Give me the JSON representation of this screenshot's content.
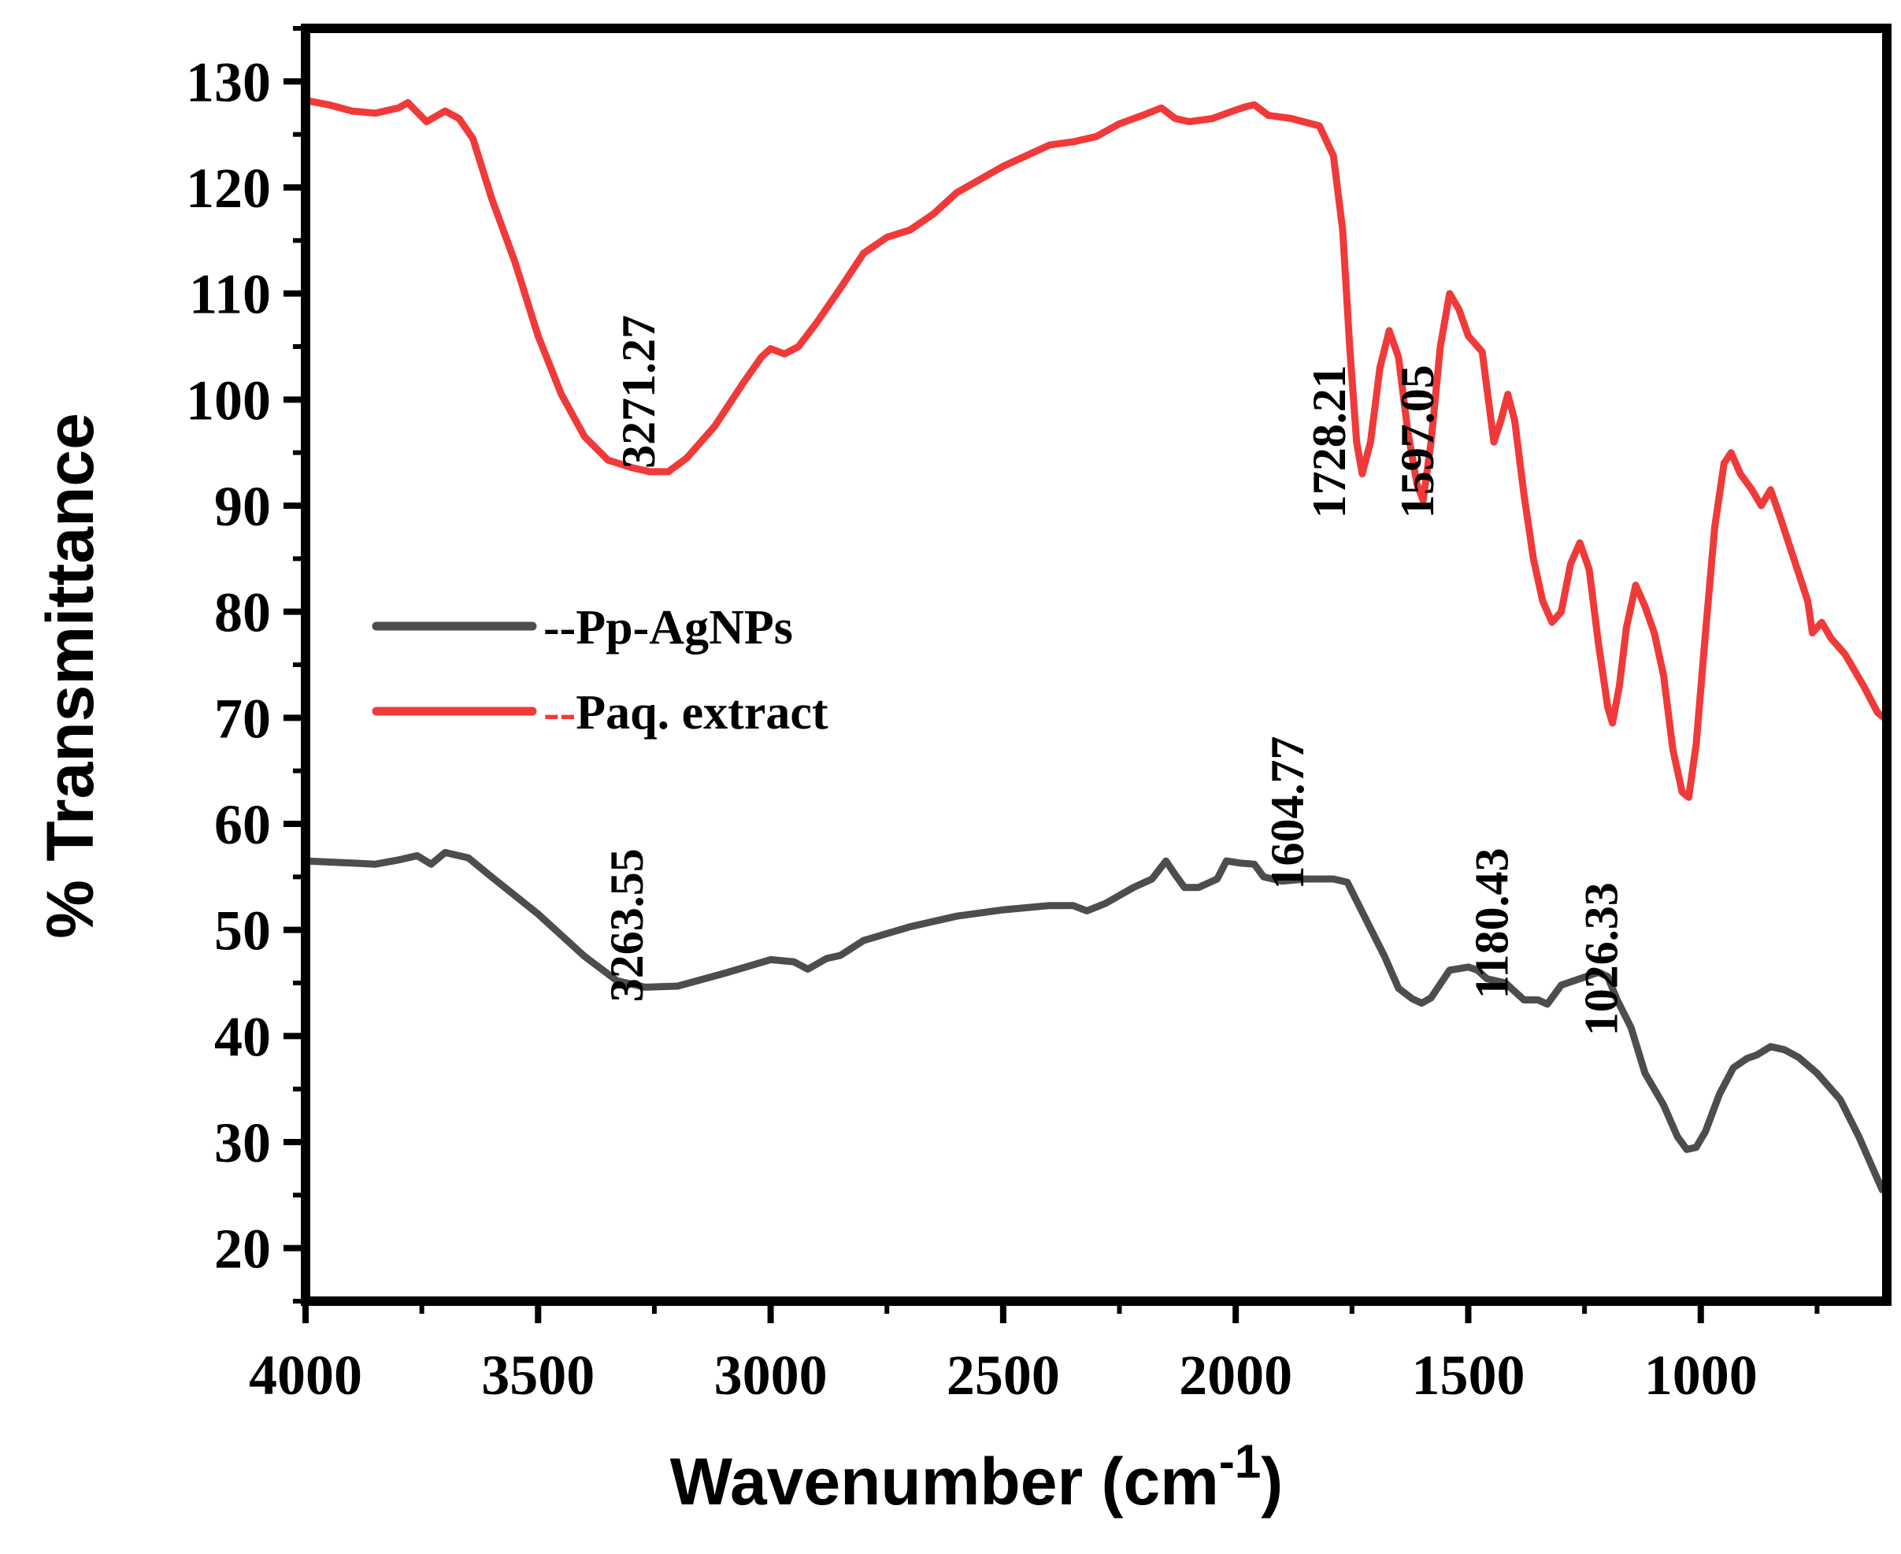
{
  "chart_data": {
    "type": "line",
    "xlabel": "Wavenumber (cm",
    "xlabel_sup": "-1",
    "xlabel_close": ")",
    "ylabel": "% Transmittance",
    "xlim": [
      4000,
      600
    ],
    "ylim": [
      15,
      135
    ],
    "xticks": [
      4000,
      3500,
      3000,
      2500,
      2000,
      1500,
      1000
    ],
    "xtick_labels": [
      "4000",
      "3500",
      "3000",
      "2500",
      "2000",
      "1500",
      "1000"
    ],
    "yticks": [
      20,
      30,
      40,
      50,
      60,
      70,
      80,
      90,
      100,
      110,
      120,
      130
    ],
    "ytick_labels": [
      "20",
      "30",
      "40",
      "50",
      "60",
      "70",
      "80",
      "90",
      "100",
      "110",
      "120",
      "130"
    ],
    "legend": {
      "position": "center-left",
      "items": [
        {
          "prefix": "--",
          "label": "Pp-AgNPs",
          "series": 0
        },
        {
          "prefix": "--",
          "label": "Paq. extract",
          "series": 1
        }
      ]
    },
    "series": [
      {
        "name": "Pp-AgNPs",
        "color": "#4d4d4d",
        "points": [
          [
            4000,
            56.5
          ],
          [
            3900,
            56.3
          ],
          [
            3850,
            56.2
          ],
          [
            3800,
            56.6
          ],
          [
            3760,
            57
          ],
          [
            3730,
            56.2
          ],
          [
            3700,
            57.3
          ],
          [
            3650,
            56.8
          ],
          [
            3600,
            55
          ],
          [
            3500,
            51.5
          ],
          [
            3400,
            47.5
          ],
          [
            3330,
            45.2
          ],
          [
            3270,
            44.6
          ],
          [
            3200,
            44.7
          ],
          [
            3100,
            45.9
          ],
          [
            3000,
            47.2
          ],
          [
            2950,
            47
          ],
          [
            2920,
            46.3
          ],
          [
            2880,
            47.3
          ],
          [
            2850,
            47.6
          ],
          [
            2800,
            49
          ],
          [
            2700,
            50.3
          ],
          [
            2600,
            51.3
          ],
          [
            2500,
            51.9
          ],
          [
            2400,
            52.3
          ],
          [
            2350,
            52.3
          ],
          [
            2320,
            51.8
          ],
          [
            2280,
            52.5
          ],
          [
            2220,
            54
          ],
          [
            2180,
            54.8
          ],
          [
            2150,
            56.5
          ],
          [
            2130,
            55.2
          ],
          [
            2110,
            54
          ],
          [
            2080,
            54
          ],
          [
            2040,
            54.8
          ],
          [
            2020,
            56.5
          ],
          [
            1990,
            56.3
          ],
          [
            1960,
            56.2
          ],
          [
            1940,
            55
          ],
          [
            1900,
            54.6
          ],
          [
            1850,
            54.8
          ],
          [
            1790,
            54.8
          ],
          [
            1760,
            54.5
          ],
          [
            1720,
            51
          ],
          [
            1680,
            47.5
          ],
          [
            1650,
            44.5
          ],
          [
            1620,
            43.5
          ],
          [
            1600,
            43.1
          ],
          [
            1580,
            43.6
          ],
          [
            1540,
            46.2
          ],
          [
            1500,
            46.5
          ],
          [
            1480,
            46.2
          ],
          [
            1460,
            45.4
          ],
          [
            1420,
            45
          ],
          [
            1400,
            44.2
          ],
          [
            1380,
            43.4
          ],
          [
            1350,
            43.4
          ],
          [
            1330,
            43
          ],
          [
            1300,
            44.8
          ],
          [
            1260,
            45.4
          ],
          [
            1220,
            46
          ],
          [
            1200,
            45.6
          ],
          [
            1180,
            43.4
          ],
          [
            1150,
            40.8
          ],
          [
            1120,
            36.5
          ],
          [
            1080,
            33.5
          ],
          [
            1050,
            30.5
          ],
          [
            1030,
            29.3
          ],
          [
            1010,
            29.5
          ],
          [
            990,
            31
          ],
          [
            960,
            34.5
          ],
          [
            930,
            37
          ],
          [
            900,
            37.9
          ],
          [
            880,
            38.2
          ],
          [
            850,
            39
          ],
          [
            820,
            38.7
          ],
          [
            790,
            38
          ],
          [
            750,
            36.5
          ],
          [
            700,
            34
          ],
          [
            660,
            30.5
          ],
          [
            630,
            27.5
          ],
          [
            610,
            25.5
          ]
        ]
      },
      {
        "name": "Paq. extract",
        "color": "#f03a3a",
        "points": [
          [
            4000,
            128.2
          ],
          [
            3950,
            127.8
          ],
          [
            3900,
            127.2
          ],
          [
            3850,
            127
          ],
          [
            3800,
            127.5
          ],
          [
            3780,
            128
          ],
          [
            3740,
            126.2
          ],
          [
            3700,
            127.2
          ],
          [
            3670,
            126.5
          ],
          [
            3640,
            124.6
          ],
          [
            3600,
            119
          ],
          [
            3550,
            113
          ],
          [
            3500,
            106
          ],
          [
            3450,
            100.5
          ],
          [
            3400,
            96.5
          ],
          [
            3350,
            94.3
          ],
          [
            3300,
            93.6
          ],
          [
            3260,
            93.2
          ],
          [
            3220,
            93.2
          ],
          [
            3180,
            94.5
          ],
          [
            3120,
            97.5
          ],
          [
            3060,
            101.5
          ],
          [
            3020,
            104
          ],
          [
            3000,
            104.8
          ],
          [
            2970,
            104.3
          ],
          [
            2940,
            105
          ],
          [
            2900,
            107.3
          ],
          [
            2850,
            110.5
          ],
          [
            2800,
            113.8
          ],
          [
            2750,
            115.3
          ],
          [
            2700,
            116
          ],
          [
            2650,
            117.5
          ],
          [
            2600,
            119.5
          ],
          [
            2500,
            122
          ],
          [
            2400,
            124
          ],
          [
            2350,
            124.3
          ],
          [
            2300,
            124.8
          ],
          [
            2250,
            126
          ],
          [
            2200,
            126.8
          ],
          [
            2160,
            127.5
          ],
          [
            2130,
            126.5
          ],
          [
            2100,
            126.2
          ],
          [
            2050,
            126.5
          ],
          [
            2000,
            127.3
          ],
          [
            1980,
            127.6
          ],
          [
            1960,
            127.8
          ],
          [
            1930,
            126.8
          ],
          [
            1880,
            126.5
          ],
          [
            1820,
            125.8
          ],
          [
            1790,
            123
          ],
          [
            1770,
            116
          ],
          [
            1755,
            105
          ],
          [
            1740,
            96
          ],
          [
            1728,
            93
          ],
          [
            1710,
            96
          ],
          [
            1690,
            103
          ],
          [
            1670,
            106.5
          ],
          [
            1650,
            104
          ],
          [
            1630,
            97
          ],
          [
            1610,
            92
          ],
          [
            1597,
            90.5
          ],
          [
            1580,
            96
          ],
          [
            1560,
            105
          ],
          [
            1540,
            110
          ],
          [
            1520,
            108.5
          ],
          [
            1500,
            106
          ],
          [
            1470,
            104.5
          ],
          [
            1445,
            96
          ],
          [
            1430,
            98
          ],
          [
            1415,
            100.5
          ],
          [
            1400,
            98
          ],
          [
            1380,
            91
          ],
          [
            1360,
            85
          ],
          [
            1340,
            81
          ],
          [
            1320,
            79
          ],
          [
            1300,
            80
          ],
          [
            1280,
            84.5
          ],
          [
            1260,
            86.5
          ],
          [
            1240,
            84
          ],
          [
            1220,
            77
          ],
          [
            1200,
            71
          ],
          [
            1190,
            69.5
          ],
          [
            1175,
            73
          ],
          [
            1160,
            78.5
          ],
          [
            1140,
            82.5
          ],
          [
            1120,
            80.5
          ],
          [
            1100,
            78
          ],
          [
            1080,
            74
          ],
          [
            1060,
            67
          ],
          [
            1040,
            63
          ],
          [
            1026,
            62.5
          ],
          [
            1010,
            67.5
          ],
          [
            990,
            78
          ],
          [
            970,
            88
          ],
          [
            950,
            94
          ],
          [
            935,
            95
          ],
          [
            915,
            93
          ],
          [
            890,
            91.5
          ],
          [
            870,
            90
          ],
          [
            850,
            91.5
          ],
          [
            830,
            89
          ],
          [
            800,
            85
          ],
          [
            770,
            81
          ],
          [
            760,
            78
          ],
          [
            740,
            79
          ],
          [
            720,
            77.5
          ],
          [
            690,
            76
          ],
          [
            650,
            73
          ],
          [
            620,
            70.5
          ],
          [
            600,
            69.8
          ]
        ]
      }
    ],
    "annotations": [
      {
        "text": "3271.27",
        "x": 3250,
        "y": 93.5
      },
      {
        "text": "1728.21",
        "x": 1765,
        "y": 88.8
      },
      {
        "text": "1597.05",
        "x": 1575,
        "y": 88.8
      },
      {
        "text": "3263.55",
        "x": 3275,
        "y": 43.2
      },
      {
        "text": "1604.77",
        "x": 1855,
        "y": 53.8
      },
      {
        "text": "1180.43",
        "x": 1415,
        "y": 43.5
      },
      {
        "text": "1026.33",
        "x": 1180,
        "y": 40
      }
    ]
  }
}
